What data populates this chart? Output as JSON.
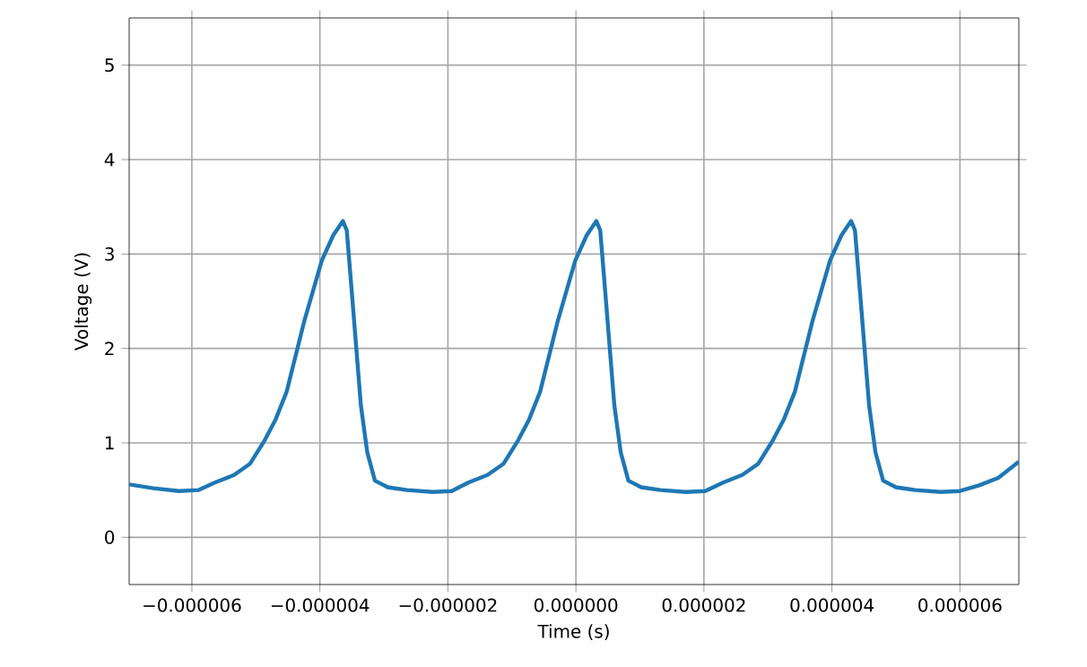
{
  "chart_data": {
    "type": "line",
    "xlabel": "Time (s)",
    "ylabel": "Voltage (V)",
    "x": [
      -6.98e-06,
      -6.6e-06,
      -6.2e-06,
      -5.9e-06,
      -5.64e-06,
      -5.34e-06,
      -5.09e-06,
      -4.86e-06,
      -4.69e-06,
      -4.52e-06,
      -4.24e-06,
      -3.97e-06,
      -3.79e-06,
      -3.64e-06,
      -3.58e-06,
      -3.49e-06,
      -3.36e-06,
      -3.26e-06,
      -3.14e-06,
      -2.94e-06,
      -2.64e-06,
      -2.24e-06,
      -1.94e-06,
      -1.68e-06,
      -1.38e-06,
      -1.13e-06,
      -9e-07,
      -7.3e-07,
      -5.6e-07,
      -2.8e-07,
      -1e-08,
      1.7e-07,
      3.2e-07,
      3.8e-07,
      4.7e-07,
      6e-07,
      7e-07,
      8.2e-07,
      1.02e-06,
      1.32e-06,
      1.72e-06,
      2.02e-06,
      2.3e-06,
      2.6e-06,
      2.85e-06,
      3.08e-06,
      3.25e-06,
      3.42e-06,
      3.7e-06,
      3.97e-06,
      4.15e-06,
      4.3e-06,
      4.36e-06,
      4.45e-06,
      4.58e-06,
      4.68e-06,
      4.8e-06,
      5e-06,
      5.3e-06,
      5.7e-06,
      6e-06,
      6.3e-06,
      6.6e-06,
      6.92e-06
    ],
    "series": [
      {
        "color": "#1f77b4",
        "values": [
          0.56,
          0.52,
          0.49,
          0.5,
          0.58,
          0.66,
          0.78,
          1.03,
          1.25,
          1.54,
          2.3,
          2.93,
          3.2,
          3.35,
          3.25,
          2.5,
          1.4,
          0.9,
          0.6,
          0.53,
          0.5,
          0.48,
          0.49,
          0.58,
          0.66,
          0.78,
          1.03,
          1.25,
          1.54,
          2.3,
          2.93,
          3.2,
          3.35,
          3.25,
          2.5,
          1.4,
          0.9,
          0.6,
          0.53,
          0.5,
          0.48,
          0.49,
          0.58,
          0.66,
          0.78,
          1.03,
          1.25,
          1.54,
          2.3,
          2.93,
          3.2,
          3.35,
          3.25,
          2.5,
          1.4,
          0.9,
          0.6,
          0.53,
          0.5,
          0.48,
          0.49,
          0.55,
          0.63,
          0.8
        ]
      }
    ],
    "xlim": [
      -6.98e-06,
      6.92e-06
    ],
    "ylim": [
      -0.5,
      5.5
    ],
    "xticks": [
      {
        "value": -6e-06,
        "label": "−0.000006"
      },
      {
        "value": -4e-06,
        "label": "−0.000004"
      },
      {
        "value": -2e-06,
        "label": "−0.000002"
      },
      {
        "value": 0,
        "label": "0.000000"
      },
      {
        "value": 2e-06,
        "label": "0.000002"
      },
      {
        "value": 4e-06,
        "label": "0.000004"
      },
      {
        "value": 6e-06,
        "label": "0.000006"
      }
    ],
    "yticks": [
      0,
      1,
      2,
      3,
      4,
      5
    ],
    "grid": true,
    "marker": "none",
    "line_style": "solid"
  }
}
